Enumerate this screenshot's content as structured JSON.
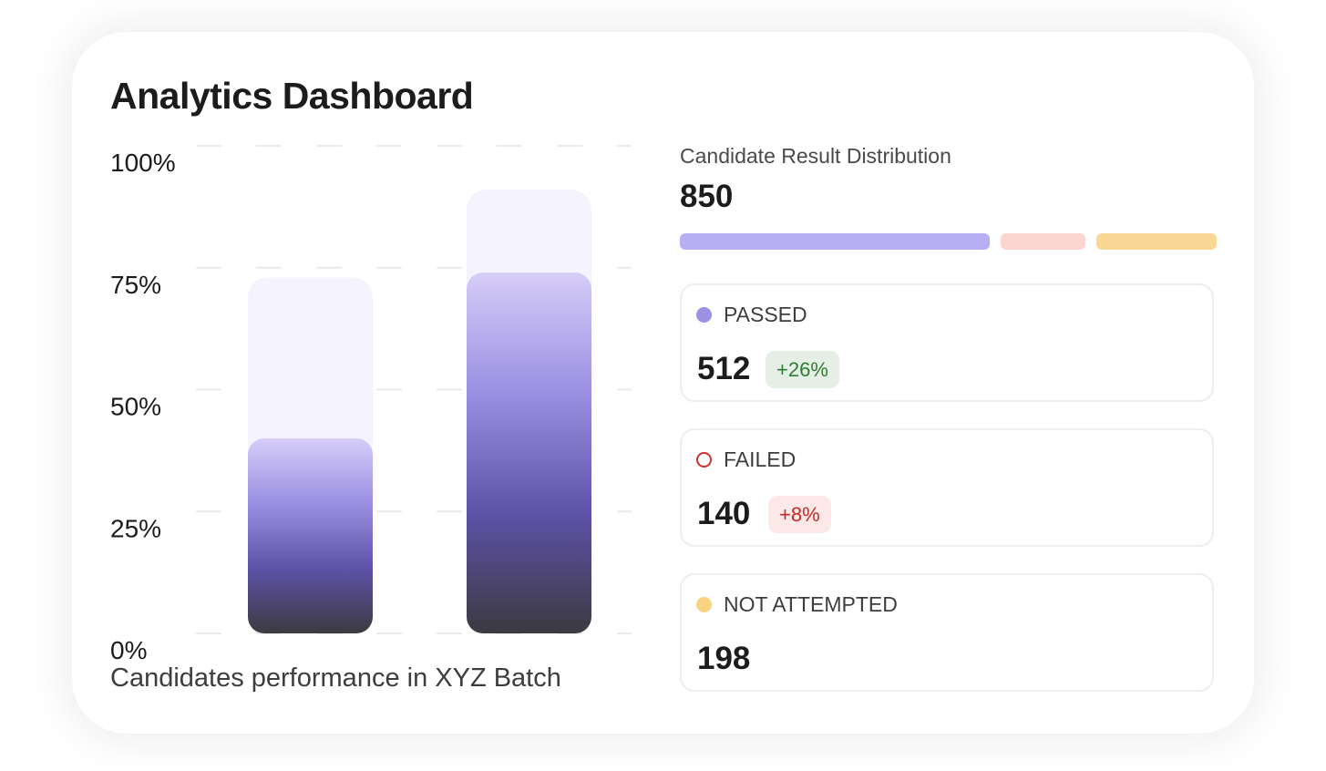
{
  "header": {
    "title": "Analytics Dashboard"
  },
  "chart_data": {
    "type": "bar",
    "title": "",
    "xlabel": "Candidates performance in XYZ Batch",
    "ylabel": "",
    "ylim": [
      0,
      100
    ],
    "yticks": [
      "0%",
      "25%",
      "50%",
      "75%",
      "100%"
    ],
    "tick_values": [
      0,
      25,
      50,
      75,
      100
    ],
    "grid": true,
    "categories": [
      "",
      ""
    ],
    "series": [
      {
        "values": [
          73,
          91
        ],
        "color": "#f5f3fe"
      },
      {
        "values": [
          40,
          74
        ],
        "gradient": [
          "#d6cdf8",
          "#9a8fe2",
          "#5e52a9",
          "#3c3a40"
        ]
      }
    ]
  },
  "distribution": {
    "title": "Candidate Result Distribution",
    "total": "850",
    "segments": [
      {
        "name": "passed",
        "value": 512,
        "color": "#b6aff5"
      },
      {
        "name": "failed",
        "value": 140,
        "color": "#fdd5d0"
      },
      {
        "name": "not_attempted",
        "value": 198,
        "color": "#fbd796"
      }
    ],
    "stats": [
      {
        "label": "PASSED",
        "value": "512",
        "change": "+26%",
        "dot_color": "#9c92e3",
        "badge_bg": "#e6efe6",
        "badge_color": "#2e7d32"
      },
      {
        "label": "FAILED",
        "value": "140",
        "change": "+8%",
        "dot_color": "#d32f2f",
        "badge_bg": "#fde8e8",
        "badge_color": "#c62828"
      },
      {
        "label": "NOT ATTEMPTED",
        "value": "198",
        "dot_color": "#f8d27f"
      }
    ]
  }
}
